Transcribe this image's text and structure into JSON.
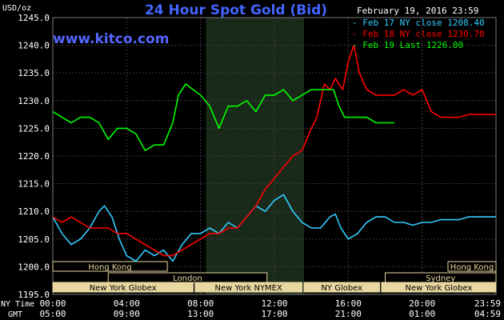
{
  "header": {
    "title": "24 Hour Spot Gold (Bid)",
    "date": "February 19, 2016 23:59",
    "site": "www.kitco.com"
  },
  "colors": {
    "background": "#000000",
    "title": "#4466ff",
    "site": "#5566ff",
    "shade": "#1a2a1a",
    "grid": "#3a3a3a",
    "feb17": "#33ccff",
    "feb18": "#ff0000",
    "feb19": "#00ff00",
    "session_fill": "#e8d7a0"
  },
  "chart_data": {
    "type": "line",
    "title": "24 Hour Spot Gold (Bid)",
    "ylabel": "USD/oz",
    "ylim": [
      1195,
      1245
    ],
    "yticks": [
      "1245.0",
      "1240.0",
      "1235.0",
      "1230.0",
      "1225.0",
      "1220.0",
      "1215.0",
      "1210.0",
      "1205.0",
      "1200.0",
      "1195.0"
    ],
    "x_axis": {
      "range_hours": [
        0,
        24
      ],
      "ny_time_label": "NY Time",
      "gmt_label": "GMT",
      "ny_ticks": [
        "00:00",
        "04:00",
        "08:00",
        "12:00",
        "16:00",
        "20:00",
        "23:59"
      ],
      "gmt_ticks": [
        "05:00",
        "09:00",
        "13:00",
        "17:00",
        "21:00",
        "01:00",
        "04:59"
      ]
    },
    "shaded_hours": [
      8.3,
      13.6
    ],
    "legend": [
      {
        "key": "feb17",
        "label": "- Feb 17 NY close 1208.40"
      },
      {
        "key": "feb18",
        "label": "- Feb 18 NY close 1230.70"
      },
      {
        "key": "feb19",
        "label": "- Feb 19 Last 1226.00"
      }
    ],
    "series": [
      {
        "key": "feb17",
        "x": [
          0,
          0.5,
          1,
          1.5,
          2,
          2.5,
          2.8,
          3.2,
          3.6,
          4,
          4.5,
          5,
          5.5,
          6,
          6.5,
          7,
          7.5,
          8,
          8.5,
          9,
          9.5,
          10,
          10.5,
          11,
          11.5,
          12,
          12.5,
          13,
          13.5,
          14,
          14.5,
          15,
          15.3,
          15.6,
          16,
          16.5,
          17,
          17.5,
          18,
          18.5,
          19,
          19.5,
          20,
          20.5,
          21,
          21.5,
          22,
          22.5,
          23,
          23.5,
          24
        ],
        "y": [
          1209,
          1206,
          1204,
          1205,
          1207,
          1210,
          1211,
          1209,
          1205,
          1202,
          1201,
          1203,
          1202,
          1203,
          1201,
          1204,
          1206,
          1206,
          1207,
          1206,
          1208,
          1207,
          1209,
          1211,
          1210,
          1212,
          1213,
          1210,
          1208,
          1207,
          1207,
          1209,
          1209.5,
          1207,
          1205,
          1206,
          1208,
          1209,
          1209,
          1208,
          1208,
          1207.5,
          1208,
          1208,
          1208.5,
          1208.5,
          1208.5,
          1209,
          1209,
          1209,
          1209
        ]
      },
      {
        "key": "feb18",
        "x": [
          0,
          0.5,
          1,
          1.5,
          2,
          2.5,
          3,
          3.5,
          4,
          4.5,
          5,
          5.5,
          6,
          6.5,
          7,
          7.5,
          8,
          8.5,
          9,
          9.5,
          10,
          10.5,
          11,
          11.5,
          12,
          12.5,
          13,
          13.5,
          14,
          14.3,
          14.7,
          15,
          15.3,
          15.7,
          16,
          16.3,
          16.6,
          17,
          17.5,
          18,
          18.5,
          19,
          19.5,
          20,
          20.5,
          21,
          21.5,
          22,
          22.5,
          23,
          23.5,
          24
        ],
        "y": [
          1209,
          1208,
          1209,
          1208,
          1207,
          1207,
          1207,
          1206,
          1206,
          1205,
          1204,
          1203,
          1202,
          1202,
          1203,
          1204,
          1205,
          1206,
          1206,
          1207,
          1207,
          1209,
          1211,
          1214,
          1216,
          1218,
          1220,
          1221,
          1225,
          1227,
          1233,
          1232,
          1234,
          1232,
          1237,
          1240,
          1235,
          1232,
          1231,
          1231,
          1231,
          1232,
          1231,
          1232,
          1228,
          1227,
          1227,
          1227,
          1227.5,
          1227.5,
          1227.5,
          1227.5
        ]
      },
      {
        "key": "feb19",
        "x": [
          0,
          0.5,
          1,
          1.5,
          2,
          2.5,
          3,
          3.5,
          4,
          4.5,
          5,
          5.5,
          6,
          6.5,
          6.8,
          7.2,
          7.6,
          8,
          8.5,
          9,
          9.5,
          10,
          10.5,
          11,
          11.5,
          12,
          12.5,
          13,
          13.5,
          14,
          14.5,
          15,
          15.2,
          15.5,
          15.8,
          16,
          16.5,
          17,
          17.5,
          18,
          18.5
        ],
        "y": [
          1228,
          1227,
          1226,
          1227,
          1227,
          1226,
          1223,
          1225,
          1225,
          1224,
          1221,
          1222,
          1222,
          1226,
          1231,
          1233,
          1232,
          1231,
          1229,
          1225,
          1229,
          1229,
          1230,
          1228,
          1231,
          1231,
          1232,
          1230,
          1231,
          1232,
          1232,
          1232,
          1232,
          1229,
          1227,
          1227,
          1227,
          1227,
          1226,
          1226,
          1226
        ]
      }
    ],
    "sessions": [
      {
        "label": "Hong Kong",
        "row": 0,
        "start": 0,
        "end": 6.2,
        "fill": false
      },
      {
        "label": "Hong Kong",
        "row": 0,
        "start": 21.4,
        "end": 24,
        "fill": false
      },
      {
        "label": "London",
        "row": 1,
        "start": 3.0,
        "end": 11.6,
        "fill": false
      },
      {
        "label": "Sydney",
        "row": 1,
        "start": 18.0,
        "end": 24,
        "fill": false
      },
      {
        "label": "New York Globex",
        "row": 2,
        "start": 0,
        "end": 7.6,
        "fill": true
      },
      {
        "label": "New York NYMEX",
        "row": 2,
        "start": 7.7,
        "end": 13.5,
        "fill": true
      },
      {
        "label": "NY Globex",
        "row": 2,
        "start": 13.6,
        "end": 17.7,
        "fill": true
      },
      {
        "label": "New York Globex",
        "row": 2,
        "start": 17.8,
        "end": 24,
        "fill": true
      }
    ]
  }
}
